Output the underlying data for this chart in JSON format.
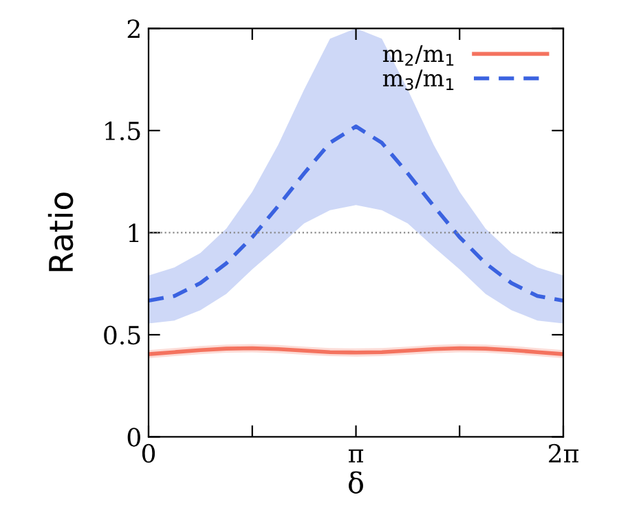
{
  "chart_data": {
    "type": "line",
    "xlabel": "δ",
    "ylabel": "Ratio",
    "x": [
      0,
      0.393,
      0.785,
      1.178,
      1.571,
      1.963,
      2.356,
      2.749,
      3.142,
      3.534,
      3.927,
      4.32,
      4.712,
      5.105,
      5.498,
      5.89,
      6.283
    ],
    "series": [
      {
        "name": "m$_{2}$/m$_{1}$",
        "color": "#f4735f",
        "line_style": "solid",
        "values": [
          0.405,
          0.415,
          0.425,
          0.432,
          0.434,
          0.43,
          0.422,
          0.415,
          0.413,
          0.415,
          0.422,
          0.43,
          0.434,
          0.432,
          0.425,
          0.415,
          0.405
        ],
        "lower": [
          0.385,
          0.395,
          0.405,
          0.412,
          0.414,
          0.41,
          0.402,
          0.395,
          0.393,
          0.395,
          0.402,
          0.41,
          0.414,
          0.412,
          0.405,
          0.395,
          0.385
        ],
        "upper": [
          0.425,
          0.435,
          0.445,
          0.452,
          0.454,
          0.45,
          0.442,
          0.435,
          0.433,
          0.435,
          0.442,
          0.45,
          0.454,
          0.452,
          0.445,
          0.435,
          0.425
        ]
      },
      {
        "name": "m$_{3}$/m$_{1}$",
        "color": "#3a62e0",
        "line_style": "dashed",
        "values": [
          0.667,
          0.69,
          0.753,
          0.85,
          0.978,
          1.13,
          1.29,
          1.44,
          1.52,
          1.44,
          1.29,
          1.13,
          0.978,
          0.85,
          0.753,
          0.69,
          0.667
        ],
        "lower": [
          0.555,
          0.57,
          0.62,
          0.7,
          0.82,
          0.93,
          1.045,
          1.11,
          1.135,
          1.11,
          1.045,
          0.93,
          0.82,
          0.7,
          0.62,
          0.57,
          0.555
        ],
        "upper": [
          0.79,
          0.83,
          0.9,
          1.02,
          1.2,
          1.43,
          1.7,
          1.95,
          2.0,
          1.95,
          1.7,
          1.43,
          1.2,
          1.02,
          0.9,
          0.83,
          0.79
        ]
      }
    ],
    "xlim": [
      0,
      6.283
    ],
    "xticks": [
      {
        "value": 0,
        "label": "0"
      },
      {
        "value": 1.571,
        "label": null
      },
      {
        "value": 3.142,
        "label": "π"
      },
      {
        "value": 4.712,
        "label": null
      },
      {
        "value": 6.283,
        "label": "2π"
      }
    ],
    "ylim": [
      0,
      2
    ],
    "yticks": [
      0,
      0.5,
      1,
      1.5,
      2
    ],
    "ref_lines": [
      {
        "axis": "y",
        "value": 1,
        "color": "#888888",
        "line_style": "dotted"
      }
    ],
    "grid": false,
    "legend": "top right",
    "marker": "none"
  }
}
